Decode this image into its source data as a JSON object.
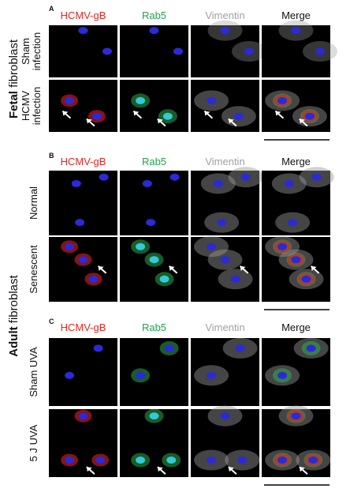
{
  "side_labels": [
    {
      "bold": "Fetal",
      "text": "fibroblast"
    },
    {
      "bold": "Adult",
      "text": "fibroblast"
    }
  ],
  "panels": [
    {
      "label": "A",
      "columns": [
        "HCMV-gB",
        "Rab5",
        "Vimentin",
        "Merge"
      ],
      "rows": [
        {
          "lines": [
            "Sham",
            "infection"
          ]
        },
        {
          "lines": [
            "HCMV",
            "infection"
          ]
        }
      ]
    },
    {
      "label": "B",
      "columns": [
        "HCMV-gB",
        "Rab5",
        "Vimentin",
        "Merge"
      ],
      "rows": [
        {
          "lines": [
            "Normal"
          ]
        },
        {
          "lines": [
            "Senescent"
          ]
        }
      ]
    },
    {
      "label": "C",
      "columns": [
        "HCMV-gB",
        "Rab5",
        "Vimentin",
        "Merge"
      ],
      "rows": [
        {
          "lines": [
            "Sham UVA"
          ]
        },
        {
          "lines": [
            "5 J UVA"
          ]
        }
      ]
    }
  ]
}
